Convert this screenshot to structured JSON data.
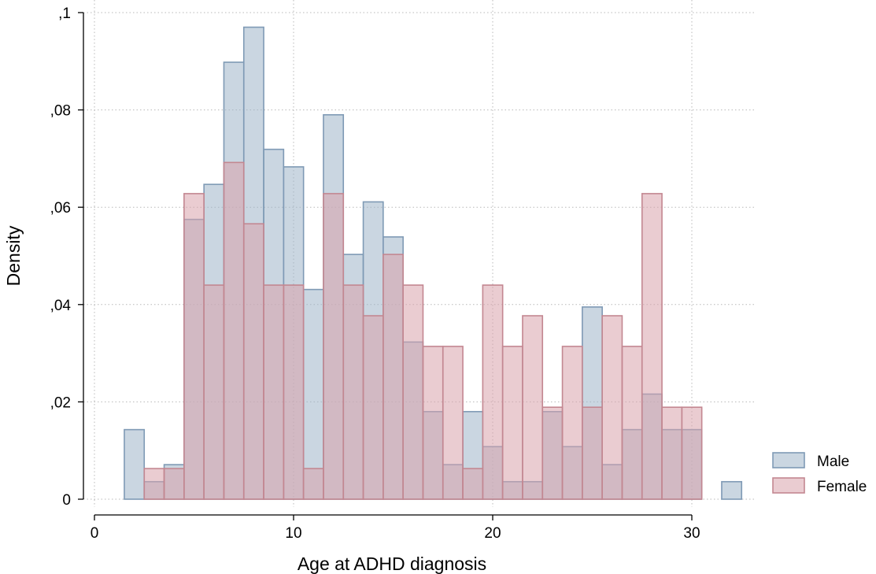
{
  "chart_data": {
    "type": "bar",
    "xlabel": "Age at ADHD diagnosis",
    "ylabel": "Density",
    "xlim": [
      0,
      33
    ],
    "ylim": [
      0,
      0.1
    ],
    "x_ticks": [
      0,
      10,
      20,
      30
    ],
    "x_tick_labels": [
      "0",
      "10",
      "20",
      "30"
    ],
    "y_ticks": [
      0,
      0.02,
      0.04,
      0.06,
      0.08,
      0.1
    ],
    "y_tick_labels": [
      "0",
      ",02",
      ",04",
      ",06",
      ",08",
      ",1"
    ],
    "grid": true,
    "legend_position": "bottom-right",
    "bin_width": 1.0,
    "series": [
      {
        "name": "Male",
        "fill": "#9fb4c8",
        "stroke": "#7f9ab5",
        "bins": [
          {
            "x0": 1.5,
            "y": 0.0143
          },
          {
            "x0": 2.5,
            "y": 0.0036
          },
          {
            "x0": 3.5,
            "y": 0.0071
          },
          {
            "x0": 4.5,
            "y": 0.0575
          },
          {
            "x0": 5.5,
            "y": 0.0647
          },
          {
            "x0": 6.5,
            "y": 0.0898
          },
          {
            "x0": 7.5,
            "y": 0.097
          },
          {
            "x0": 8.5,
            "y": 0.0719
          },
          {
            "x0": 9.5,
            "y": 0.0683
          },
          {
            "x0": 10.5,
            "y": 0.0431
          },
          {
            "x0": 11.5,
            "y": 0.079
          },
          {
            "x0": 12.5,
            "y": 0.0503
          },
          {
            "x0": 13.5,
            "y": 0.0611
          },
          {
            "x0": 14.5,
            "y": 0.0539
          },
          {
            "x0": 15.5,
            "y": 0.0323
          },
          {
            "x0": 16.5,
            "y": 0.018
          },
          {
            "x0": 17.5,
            "y": 0.0071
          },
          {
            "x0": 18.5,
            "y": 0.018
          },
          {
            "x0": 19.5,
            "y": 0.0108
          },
          {
            "x0": 20.5,
            "y": 0.0036
          },
          {
            "x0": 21.5,
            "y": 0.0036
          },
          {
            "x0": 22.5,
            "y": 0.018
          },
          {
            "x0": 23.5,
            "y": 0.0108
          },
          {
            "x0": 24.5,
            "y": 0.0395
          },
          {
            "x0": 25.5,
            "y": 0.0071
          },
          {
            "x0": 26.5,
            "y": 0.0143
          },
          {
            "x0": 27.5,
            "y": 0.0216
          },
          {
            "x0": 28.5,
            "y": 0.0143
          },
          {
            "x0": 29.5,
            "y": 0.0143
          },
          {
            "x0": 31.5,
            "y": 0.0036
          }
        ]
      },
      {
        "name": "Female",
        "fill": "#d9a3ac",
        "stroke": "#c38791",
        "bins": [
          {
            "x0": 2.5,
            "y": 0.0063
          },
          {
            "x0": 3.5,
            "y": 0.0063
          },
          {
            "x0": 4.5,
            "y": 0.0628
          },
          {
            "x0": 5.5,
            "y": 0.044
          },
          {
            "x0": 6.5,
            "y": 0.0692
          },
          {
            "x0": 7.5,
            "y": 0.0566
          },
          {
            "x0": 8.5,
            "y": 0.044
          },
          {
            "x0": 9.5,
            "y": 0.044
          },
          {
            "x0": 10.5,
            "y": 0.0063
          },
          {
            "x0": 11.5,
            "y": 0.0628
          },
          {
            "x0": 12.5,
            "y": 0.044
          },
          {
            "x0": 13.5,
            "y": 0.0377
          },
          {
            "x0": 14.5,
            "y": 0.0503
          },
          {
            "x0": 15.5,
            "y": 0.044
          },
          {
            "x0": 16.5,
            "y": 0.0314
          },
          {
            "x0": 17.5,
            "y": 0.0314
          },
          {
            "x0": 18.5,
            "y": 0.0063
          },
          {
            "x0": 19.5,
            "y": 0.044
          },
          {
            "x0": 20.5,
            "y": 0.0314
          },
          {
            "x0": 21.5,
            "y": 0.0377
          },
          {
            "x0": 22.5,
            "y": 0.0189
          },
          {
            "x0": 23.5,
            "y": 0.0314
          },
          {
            "x0": 24.5,
            "y": 0.0189
          },
          {
            "x0": 25.5,
            "y": 0.0377
          },
          {
            "x0": 26.5,
            "y": 0.0314
          },
          {
            "x0": 27.5,
            "y": 0.0628
          },
          {
            "x0": 28.5,
            "y": 0.0189
          },
          {
            "x0": 29.5,
            "y": 0.0189
          }
        ]
      }
    ]
  }
}
